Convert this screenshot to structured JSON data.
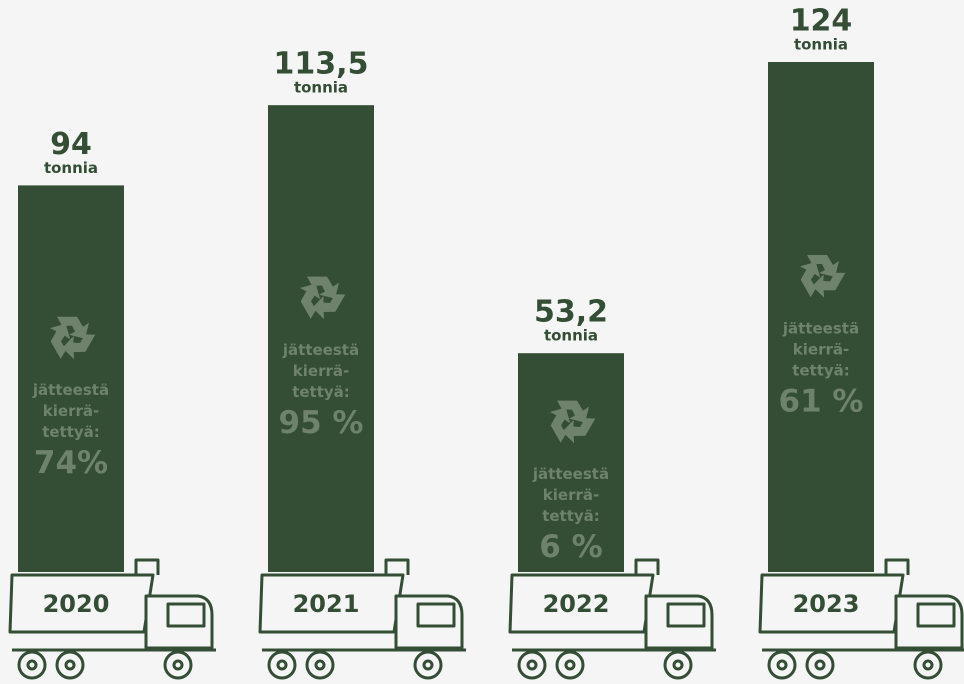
{
  "chart_data": {
    "type": "bar",
    "categories": [
      "2020",
      "2021",
      "2022",
      "2023"
    ],
    "values": [
      94,
      113.5,
      53.2,
      124
    ],
    "value_labels": [
      "94",
      "113,5",
      "53,2",
      "124"
    ],
    "unit": "tonnia",
    "color": "#344d35",
    "recycled": {
      "label_lines": [
        "jätteestä",
        "kierrä-",
        "tettyä:"
      ],
      "values": [
        74,
        95,
        6,
        61
      ],
      "value_labels": [
        "74%",
        "95 %",
        "6 %",
        "61 %"
      ],
      "color": "#6e826c"
    }
  }
}
